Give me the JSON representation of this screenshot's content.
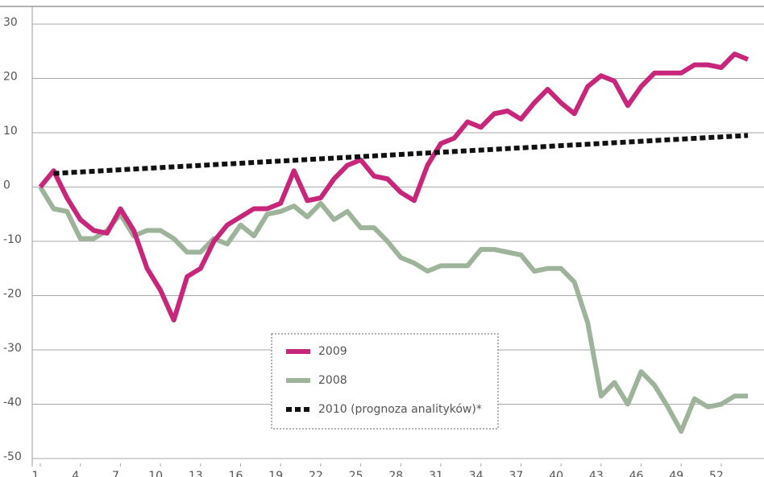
{
  "chart_data": {
    "type": "line",
    "xlim": [
      1,
      54.6
    ],
    "xticks": [
      1,
      4,
      7,
      10,
      13,
      16,
      19,
      22,
      25,
      28,
      31,
      34,
      37,
      40,
      43,
      46,
      49,
      52
    ],
    "ylim": [
      -50,
      30
    ],
    "yticks": [
      -50,
      -40,
      -30,
      -20,
      -10,
      0,
      10,
      20,
      30
    ],
    "grid": true,
    "series": [
      {
        "name": "2009",
        "color": "#c8267a",
        "dash": false,
        "x": [
          1,
          2,
          3,
          4,
          5,
          6,
          7,
          8,
          9,
          10,
          11,
          12,
          13,
          14,
          15,
          16,
          17,
          18,
          19,
          20,
          21,
          22,
          23,
          24,
          25,
          26,
          27,
          28,
          29,
          30,
          31,
          32,
          33,
          34,
          35,
          36,
          37,
          38,
          39,
          40,
          41,
          42,
          43,
          44,
          45,
          46,
          47,
          48,
          49,
          50,
          51,
          52,
          53,
          54
        ],
        "values": [
          0,
          3,
          -2,
          -6,
          -8,
          -8.5,
          -4,
          -8,
          -15,
          -19,
          -24.5,
          -16.5,
          -15,
          -10,
          -7,
          -5.5,
          -4,
          -4,
          -3,
          3,
          -2.5,
          -2,
          1.5,
          4,
          5,
          2,
          1.5,
          -1,
          -2.5,
          4,
          8,
          9,
          12,
          11,
          13.5,
          14,
          12.5,
          15.5,
          18,
          15.5,
          13.5,
          18.5,
          20.5,
          19.5,
          15,
          18.5,
          21,
          21,
          21,
          22.5,
          22.5,
          22,
          24.5,
          23.5
        ]
      },
      {
        "name": "2008",
        "color": "#9db49a",
        "dash": false,
        "x": [
          1,
          2,
          3,
          4,
          5,
          6,
          7,
          8,
          9,
          10,
          11,
          12,
          13,
          14,
          15,
          16,
          17,
          18,
          19,
          20,
          21,
          22,
          23,
          24,
          25,
          26,
          27,
          28,
          29,
          30,
          31,
          32,
          33,
          34,
          35,
          36,
          37,
          38,
          39,
          40,
          41,
          42,
          43,
          44,
          45,
          46,
          47,
          48,
          49,
          50,
          51,
          52,
          53,
          54
        ],
        "values": [
          0,
          -4,
          -4.5,
          -9.5,
          -9.5,
          -8,
          -5,
          -9,
          -8,
          -8,
          -9.5,
          -12,
          -12,
          -9.5,
          -10.5,
          -7,
          -9,
          -5,
          -4.5,
          -3.5,
          -5.5,
          -3,
          -6,
          -4.5,
          -7.5,
          -7.5,
          -10,
          -13,
          -14,
          -15.5,
          -14.5,
          -14.5,
          -14.5,
          -11.5,
          -11.5,
          -12,
          -12.5,
          -15.5,
          -15,
          -15,
          -17.5,
          -25,
          -38.5,
          -36,
          -40,
          -34,
          -36.5,
          -40.5,
          -45,
          -39,
          -40.5,
          -40,
          -38.5,
          -38.5
        ]
      },
      {
        "name": "2010 (prognoza analityków)*",
        "color": "#111111",
        "dash": true,
        "x": [
          2,
          54
        ],
        "values": [
          2.5,
          9.5
        ]
      }
    ]
  }
}
